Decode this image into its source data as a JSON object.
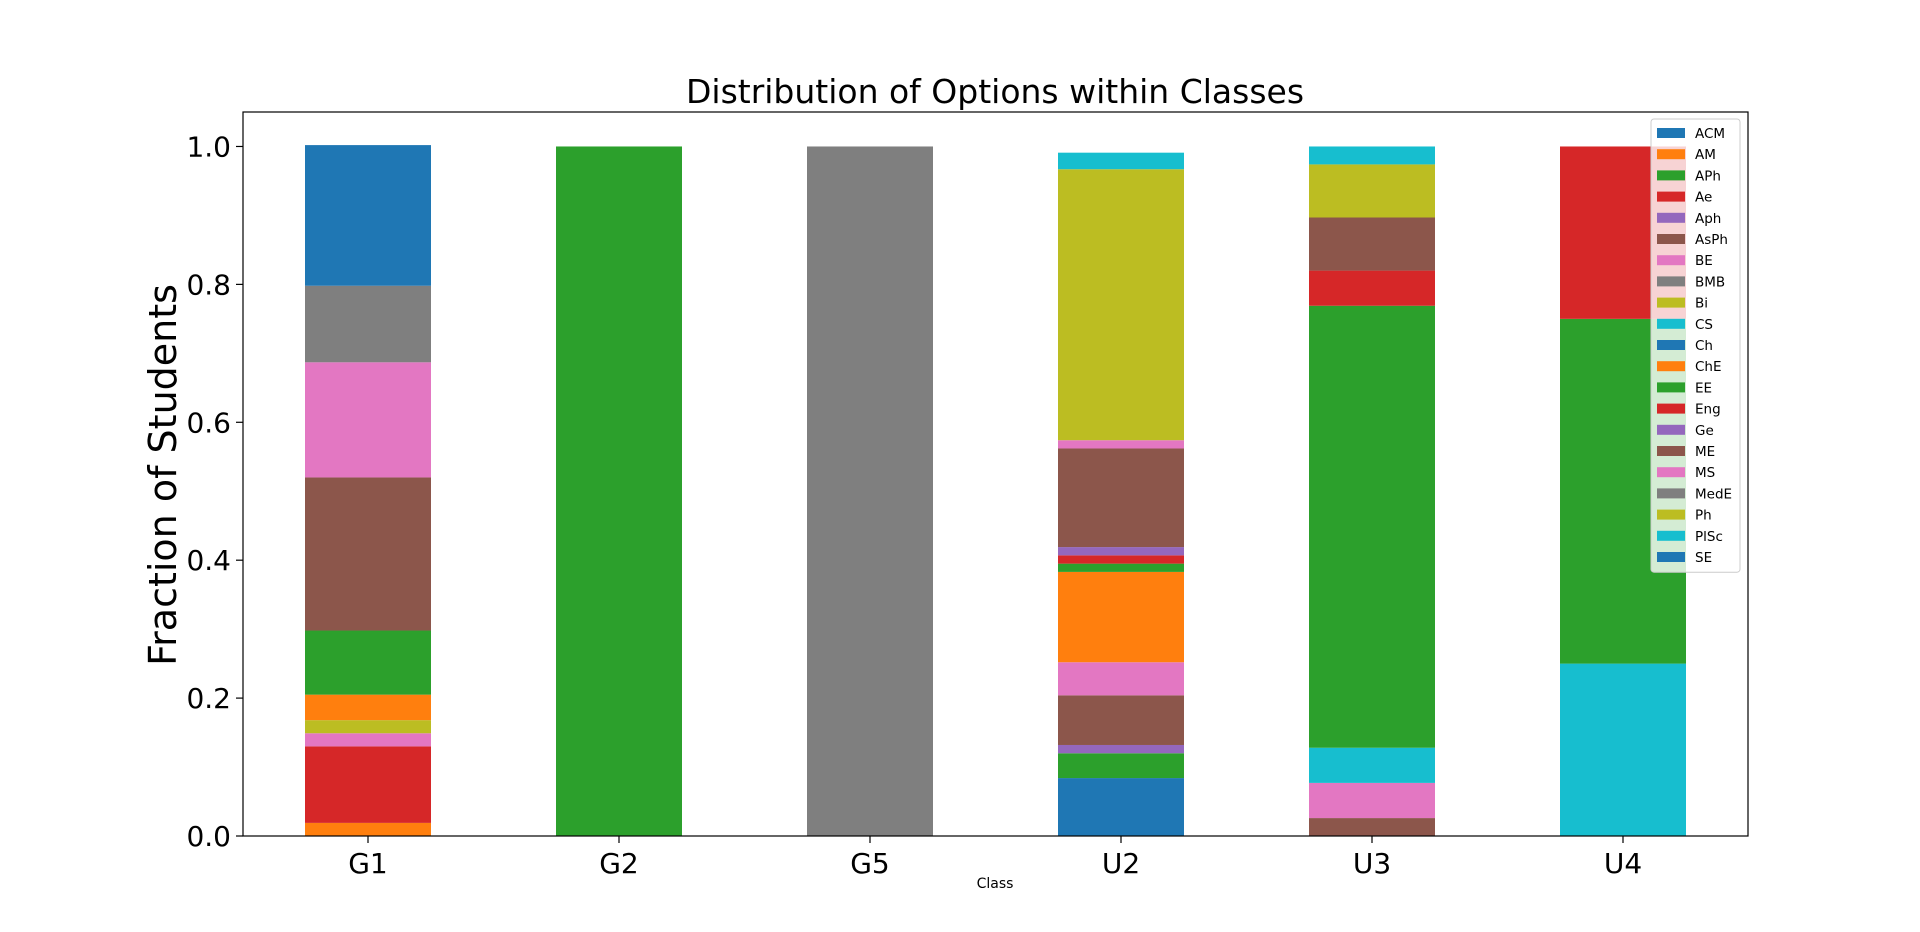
{
  "chart_data": {
    "type": "bar",
    "stacked": true,
    "title": "Distribution of Options within Classes",
    "xlabel": "Class",
    "ylabel": "Fraction of Students",
    "ylim": [
      0,
      1.05
    ],
    "yticks": [
      "0.0",
      "0.2",
      "0.4",
      "0.6",
      "0.8",
      "1.0"
    ],
    "grid": false,
    "legend_position": "top-right",
    "categories": [
      "G1",
      "G2",
      "G5",
      "U2",
      "U3",
      "U4"
    ],
    "series": [
      {
        "name": "ACM",
        "color": "#1f77b4",
        "values": [
          0.0,
          0,
          0,
          0.0,
          0.0,
          0
        ]
      },
      {
        "name": "AM",
        "color": "#ff7f0e",
        "values": [
          0.019,
          0,
          0,
          0.0,
          0.0,
          0
        ]
      },
      {
        "name": "APh",
        "color": "#2ca02c",
        "values": [
          0.0,
          0,
          0,
          0.0,
          0.0,
          0
        ]
      },
      {
        "name": "Ae",
        "color": "#d62728",
        "values": [
          0.111,
          0,
          0,
          0.0,
          0.0,
          0
        ]
      },
      {
        "name": "Aph",
        "color": "#9467bd",
        "values": [
          0.0,
          0,
          0,
          0.0,
          0.0,
          0
        ]
      },
      {
        "name": "AsPh",
        "color": "#8c564b",
        "values": [
          0.0,
          0,
          0,
          0.0,
          0.026,
          0
        ]
      },
      {
        "name": "BE",
        "color": "#e377c2",
        "values": [
          0.019,
          0,
          0,
          0.0,
          0.051,
          0
        ]
      },
      {
        "name": "BMB",
        "color": "#7f7f7f",
        "values": [
          0.0,
          0,
          0,
          0.0,
          0.0,
          0
        ]
      },
      {
        "name": "Bi",
        "color": "#bcbd22",
        "values": [
          0.019,
          0,
          0,
          0.0,
          0.0,
          0
        ]
      },
      {
        "name": "CS",
        "color": "#17becf",
        "values": [
          0.0,
          0,
          0,
          0.0,
          0.051,
          0.25
        ]
      },
      {
        "name": "Ch",
        "color": "#1f77b4",
        "values": [
          0.0,
          0,
          0,
          0.084,
          0.0,
          0
        ]
      },
      {
        "name": "ChE",
        "color": "#ff7f0e",
        "values": [
          0.037,
          0,
          0,
          0.0,
          0.0,
          0
        ]
      },
      {
        "name": "EE",
        "color": "#2ca02c",
        "values": [
          0.093,
          1,
          0,
          0.036,
          0.641,
          0.5
        ]
      },
      {
        "name": "Eng",
        "color": "#d62728",
        "values": [
          0.0,
          0,
          0,
          0.0,
          0.0,
          0
        ]
      },
      {
        "name": "Ge",
        "color": "#9467bd",
        "values": [
          0.0,
          0,
          0,
          0.012,
          0.0,
          0
        ]
      },
      {
        "name": "ME",
        "color": "#8c564b",
        "values": [
          0.222,
          0,
          0,
          0.072,
          0.0,
          0
        ]
      },
      {
        "name": "MS",
        "color": "#e377c2",
        "values": [
          0.167,
          0,
          0,
          0.048,
          0.0,
          0
        ]
      },
      {
        "name": "MedE",
        "color": "#7f7f7f",
        "values": [
          0.111,
          0,
          1,
          0.0,
          0.0,
          0
        ]
      },
      {
        "name": "Ph",
        "color": "#bcbd22",
        "values": [
          0.0,
          0,
          0,
          0.0,
          0.0,
          0
        ]
      },
      {
        "name": "PlSc",
        "color": "#17becf",
        "values": [
          0.0,
          0,
          0,
          0.0,
          0.0,
          0
        ]
      },
      {
        "name": "SE",
        "color": "#1f77b4",
        "values": [
          0.204,
          0,
          0,
          0.0,
          0.0,
          0
        ]
      },
      {
        "name": "ChE",
        "color": "#ff7f0e",
        "values": [
          0.0,
          0,
          0,
          0.131,
          0.0,
          0
        ]
      },
      {
        "name": "EE",
        "color": "#2ca02c",
        "values": [
          0.0,
          0,
          0,
          0.012,
          0.0,
          0
        ]
      },
      {
        "name": "Eng",
        "color": "#d62728",
        "values": [
          0.0,
          0,
          0,
          0.012,
          0.051,
          0.25
        ]
      },
      {
        "name": "Ge",
        "color": "#9467bd",
        "values": [
          0.0,
          0,
          0,
          0.012,
          0.0,
          0
        ]
      },
      {
        "name": "ME",
        "color": "#8c564b",
        "values": [
          0.0,
          0,
          0,
          0.143,
          0.077,
          0
        ]
      },
      {
        "name": "MS",
        "color": "#e377c2",
        "values": [
          0.0,
          0,
          0,
          0.012,
          0.0,
          0
        ]
      },
      {
        "name": "Ph",
        "color": "#bcbd22",
        "values": [
          0.0,
          0,
          0,
          0.393,
          0.077,
          0
        ]
      },
      {
        "name": "PlSc",
        "color": "#17becf",
        "values": [
          0.0,
          0,
          0,
          0.024,
          0.026,
          0
        ]
      }
    ],
    "legend": [
      {
        "name": "ACM",
        "color": "#1f77b4"
      },
      {
        "name": "AM",
        "color": "#ff7f0e"
      },
      {
        "name": "APh",
        "color": "#2ca02c"
      },
      {
        "name": "Ae",
        "color": "#d62728"
      },
      {
        "name": "Aph",
        "color": "#9467bd"
      },
      {
        "name": "AsPh",
        "color": "#8c564b"
      },
      {
        "name": "BE",
        "color": "#e377c2"
      },
      {
        "name": "BMB",
        "color": "#7f7f7f"
      },
      {
        "name": "Bi",
        "color": "#bcbd22"
      },
      {
        "name": "CS",
        "color": "#17becf"
      },
      {
        "name": "Ch",
        "color": "#1f77b4"
      },
      {
        "name": "ChE",
        "color": "#ff7f0e"
      },
      {
        "name": "EE",
        "color": "#2ca02c"
      },
      {
        "name": "Eng",
        "color": "#d62728"
      },
      {
        "name": "Ge",
        "color": "#9467bd"
      },
      {
        "name": "ME",
        "color": "#8c564b"
      },
      {
        "name": "MS",
        "color": "#e377c2"
      },
      {
        "name": "MedE",
        "color": "#7f7f7f"
      },
      {
        "name": "Ph",
        "color": "#bcbd22"
      },
      {
        "name": "PlSc",
        "color": "#17becf"
      },
      {
        "name": "SE",
        "color": "#1f77b4"
      }
    ]
  }
}
